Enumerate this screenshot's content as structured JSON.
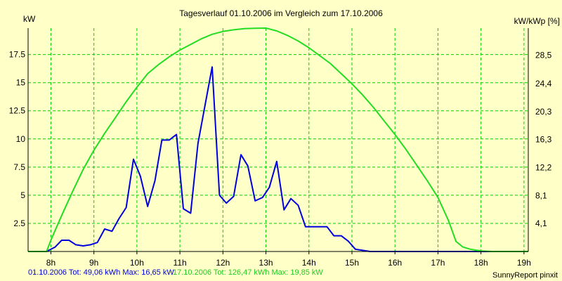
{
  "colors": {
    "background": "#FFFFC8",
    "grid": "#00D200",
    "series1": "#0000DD",
    "series2": "#22DD22",
    "axis": "#000000"
  },
  "chart_data": {
    "type": "line",
    "title": "Tagesverlauf 01.10.2006 im Vergleich zum 17.10.2006",
    "ylabel_left": "kW",
    "ylabel_right": "kW/kWp [%]",
    "xlim": [
      7.47,
      19.1
    ],
    "ylim_left": [
      0,
      19.85
    ],
    "ylim_right": [
      0,
      32.45
    ],
    "x_ticks": [
      8,
      9,
      10,
      11,
      12,
      13,
      14,
      15,
      16,
      17,
      18,
      19
    ],
    "x_tick_labels": [
      "8h",
      "9h",
      "10h",
      "11h",
      "12h",
      "13h",
      "14h",
      "15h",
      "16h",
      "17h",
      "18h",
      "19h"
    ],
    "y_left_ticks": [
      2.5,
      5,
      7.5,
      10,
      12.5,
      15,
      17.5
    ],
    "y_left_tick_labels": [
      "2.5",
      "5",
      "7.5",
      "10",
      "12.5",
      "15",
      "17.5"
    ],
    "y_right_ticks": [
      4.1,
      8.1,
      12.2,
      16.3,
      20.3,
      24.4,
      28.5
    ],
    "y_right_tick_labels": [
      "4,1",
      "8,1",
      "12,2",
      "16,3",
      "20,3",
      "24,4",
      "28,5"
    ],
    "series": [
      {
        "name": "01.10.2006",
        "color": "#0000DD",
        "x": [
          7.47,
          7.9,
          8.1,
          8.25,
          8.42,
          8.58,
          8.75,
          8.92,
          9.08,
          9.25,
          9.42,
          9.58,
          9.75,
          9.92,
          10.08,
          10.25,
          10.42,
          10.58,
          10.75,
          10.92,
          11.08,
          11.25,
          11.42,
          11.58,
          11.75,
          11.92,
          12.08,
          12.25,
          12.42,
          12.58,
          12.75,
          12.92,
          13.08,
          13.25,
          13.42,
          13.58,
          13.75,
          13.92,
          14.08,
          14.25,
          14.42,
          14.58,
          14.75,
          14.92,
          15.08,
          15.25,
          15.42,
          15.58,
          15.75,
          15.92,
          16.08,
          16.25,
          16.42,
          16.58,
          16.75,
          16.92,
          17.08,
          17.25,
          17.42,
          17.58,
          17.75,
          17.92,
          18.08,
          18.25,
          18.42,
          18.58,
          18.75,
          18.92,
          19.1
        ],
        "values": [
          0,
          0,
          0.4,
          1.0,
          1.0,
          0.6,
          0.5,
          0.6,
          0.8,
          2.0,
          1.8,
          2.9,
          3.9,
          8.2,
          6.7,
          4.0,
          6.3,
          9.9,
          9.9,
          10.4,
          3.8,
          3.4,
          9.6,
          12.9,
          16.4,
          5.0,
          4.3,
          4.9,
          8.6,
          7.6,
          4.5,
          4.8,
          5.7,
          8.0,
          3.7,
          4.7,
          4.1,
          2.2,
          2.2,
          2.2,
          2.2,
          1.4,
          1.4,
          0.9,
          0.2,
          0.1,
          0,
          0,
          0,
          0,
          0,
          0,
          0,
          0,
          0,
          0,
          0,
          0,
          0,
          0,
          0,
          0,
          0,
          0,
          0,
          0,
          0,
          0,
          0
        ]
      },
      {
        "name": "17.10.2006",
        "color": "#22DD22",
        "x": [
          7.47,
          7.9,
          8.0,
          8.25,
          8.5,
          8.75,
          9.0,
          9.25,
          9.5,
          9.75,
          10.0,
          10.25,
          10.5,
          10.75,
          11.0,
          11.25,
          11.5,
          11.75,
          12.0,
          12.25,
          12.5,
          12.75,
          13.0,
          13.25,
          13.5,
          13.75,
          14.0,
          14.25,
          14.5,
          14.75,
          15.0,
          15.25,
          15.5,
          15.75,
          16.0,
          16.25,
          16.5,
          16.75,
          17.0,
          17.25,
          17.42,
          17.58,
          17.75,
          18.0,
          18.25,
          18.5,
          18.75,
          19.1
        ],
        "values": [
          0,
          0,
          1.0,
          3.2,
          5.3,
          7.3,
          9.0,
          10.5,
          11.9,
          13.3,
          14.6,
          15.8,
          16.6,
          17.3,
          17.9,
          18.4,
          18.9,
          19.3,
          19.55,
          19.7,
          19.8,
          19.83,
          19.85,
          19.6,
          19.2,
          18.7,
          18.1,
          17.4,
          16.7,
          15.8,
          14.9,
          13.9,
          12.8,
          11.6,
          10.4,
          9.1,
          7.7,
          6.3,
          4.8,
          2.7,
          0.9,
          0.4,
          0.2,
          0.05,
          0,
          0,
          0,
          0
        ]
      }
    ]
  },
  "footer": {
    "series1_text": "01.10.2006 Tot: 49,06 kWh Max: 16,65 kW",
    "series2_text": "17.10.2006 Tot: 126,47 kWh Max: 19,85 kW",
    "credit": "SunnyReport pinxit"
  }
}
